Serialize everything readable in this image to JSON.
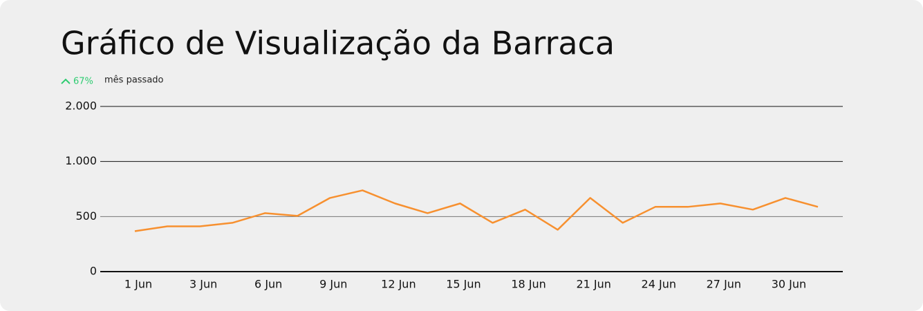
{
  "chart_data": {
    "type": "line",
    "title": "Gráfico de Visualização da Barraca",
    "change": "67%",
    "change_label": "mês passado",
    "categories": [
      "1 Jun",
      null,
      "3 Jun",
      null,
      "6 Jun",
      null,
      "9 Jun",
      null,
      "12 Jun",
      null,
      "15 Jun",
      null,
      "18 Jun",
      null,
      "21 Jun",
      null,
      "24 Jun",
      null,
      "27 Jun",
      null,
      "30 Jun",
      null
    ],
    "series": [
      {
        "color": "#f7902f",
        "values": [
          367,
          411,
          411,
          443,
          531,
          506,
          669,
          738,
          619,
          531,
          619,
          443,
          563,
          380,
          669,
          443,
          588,
          588,
          619,
          563,
          669,
          588
        ]
      }
    ],
    "ylim": [
      0,
      2000
    ],
    "yticks": [
      0,
      500,
      {
        "value": 1000,
        "label": "1.000"
      },
      {
        "value": 2000,
        "label": "2.000"
      }
    ],
    "grid": true
  }
}
